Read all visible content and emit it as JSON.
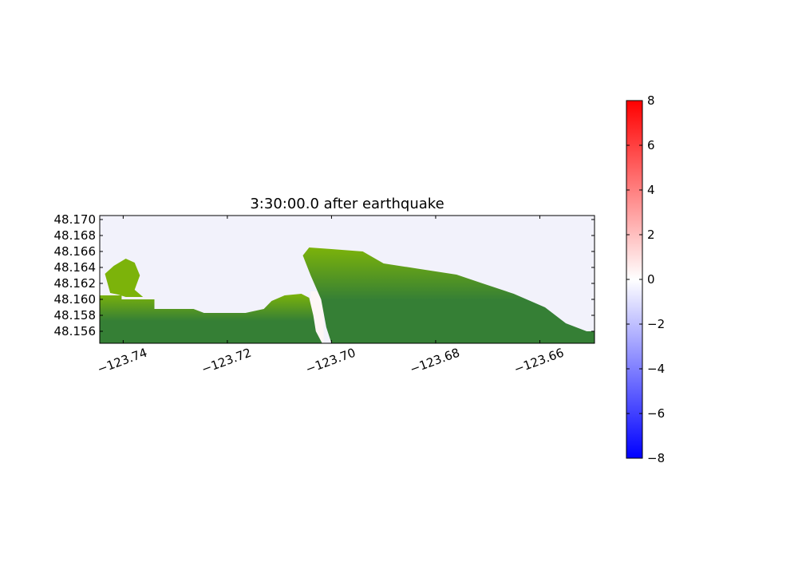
{
  "chart_data": {
    "type": "heatmap",
    "title": "3:30:00.0 after earthquake",
    "xlabel": "",
    "ylabel": "",
    "xlim": [
      -123.7445,
      -123.6495
    ],
    "ylim": [
      48.1545,
      48.1705
    ],
    "xticks": [
      -123.74,
      -123.72,
      -123.7,
      -123.68,
      -123.66
    ],
    "xtick_labels": [
      "−123.74",
      "−123.72",
      "−123.70",
      "−123.68",
      "−123.66"
    ],
    "yticks": [
      48.156,
      48.158,
      48.16,
      48.162,
      48.164,
      48.166,
      48.168,
      48.17
    ],
    "ytick_labels": [
      "48.156",
      "48.158",
      "48.160",
      "48.162",
      "48.164",
      "48.166",
      "48.168",
      "48.170"
    ],
    "colorbar": {
      "min": -8,
      "max": 8,
      "ticks": [
        8,
        6,
        4,
        2,
        0,
        -2,
        -4,
        -6,
        -8
      ],
      "tick_labels": [
        "8",
        "6",
        "4",
        "2",
        "0",
        "−2",
        "−4",
        "−6",
        "−8"
      ],
      "colormap": [
        "#0000ff",
        "#ffffff",
        "#ff0000"
      ]
    },
    "land_colors": {
      "lowland": "#7cb30a",
      "upland": "#357f35"
    },
    "water_colors": {
      "offshore": "#f2f2fb",
      "harbor": "#fdf6f6"
    },
    "coastline": [
      [
        -123.7445,
        48.1605
      ],
      [
        -123.7403,
        48.1605
      ],
      [
        -123.7403,
        48.16
      ],
      [
        -123.734,
        48.16
      ],
      [
        -123.734,
        48.1588
      ],
      [
        -123.7265,
        48.1588
      ],
      [
        -123.7245,
        48.1583
      ],
      [
        -123.7165,
        48.1583
      ],
      [
        -123.713,
        48.1588
      ],
      [
        -123.7115,
        48.1598
      ],
      [
        -123.709,
        48.1605
      ],
      [
        -123.7058,
        48.1607
      ],
      [
        -123.7043,
        48.1602
      ],
      [
        -123.7035,
        48.158
      ],
      [
        -123.703,
        48.156
      ],
      [
        -123.7018,
        48.1545
      ]
    ],
    "coastline_east": [
      [
        -123.7,
        48.1545
      ],
      [
        -123.701,
        48.1565
      ],
      [
        -123.702,
        48.16
      ],
      [
        -123.704,
        48.163
      ],
      [
        -123.7055,
        48.1655
      ],
      [
        -123.7043,
        48.1665
      ],
      [
        -123.7,
        48.1663
      ],
      [
        -123.694,
        48.166
      ],
      [
        -123.69,
        48.1645
      ],
      [
        -123.683,
        48.1638
      ],
      [
        -123.676,
        48.1631
      ],
      [
        -123.671,
        48.162
      ],
      [
        -123.665,
        48.1607
      ],
      [
        -123.659,
        48.159
      ],
      [
        -123.655,
        48.157
      ],
      [
        -123.651,
        48.156
      ],
      [
        -123.6495,
        48.156
      ],
      [
        -123.6495,
        48.1545
      ]
    ],
    "spit": [
      [
        -123.7425,
        48.1608
      ],
      [
        -123.7435,
        48.1632
      ],
      [
        -123.7418,
        48.1642
      ],
      [
        -123.7395,
        48.1651
      ],
      [
        -123.7378,
        48.1646
      ],
      [
        -123.7368,
        48.163
      ],
      [
        -123.7378,
        48.1612
      ],
      [
        -123.7362,
        48.1603
      ],
      [
        -123.7395,
        48.1603
      ],
      [
        -123.741,
        48.1606
      ]
    ]
  }
}
